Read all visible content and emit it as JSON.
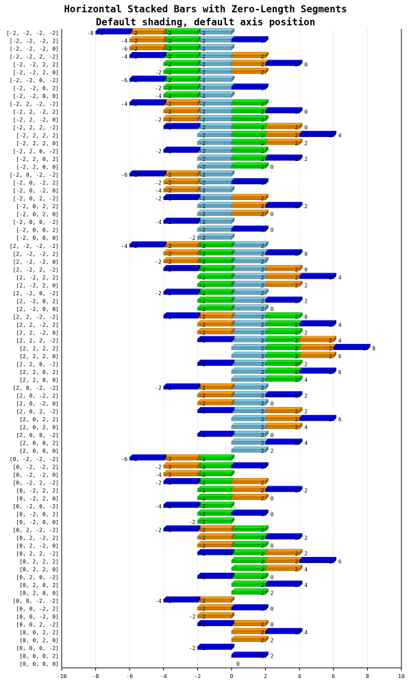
{
  "chart_data": {
    "type": "bar",
    "orientation": "horizontal",
    "stacked": true,
    "title": "Horizontal Stacked Bars with Zero-Length Segments",
    "subtitle": "Default shading, default axis position",
    "xlim": [
      -10,
      10
    ],
    "x_ticks": [
      "-10",
      "-8",
      "-6",
      "-4",
      "-2",
      "0",
      "2",
      "4",
      "6",
      "8",
      "10"
    ],
    "grid": "vertical dotted",
    "series": [
      {
        "name": "",
        "color": "#7ec8e6"
      },
      {
        "name": "",
        "color": "#00ee00"
      },
      {
        "name": "",
        "color": "#ff9900"
      },
      {
        "name": "",
        "color": "#0000ee"
      }
    ],
    "categories": [
      "[-2, -2, -2, -2]",
      "[-2, -2, -2, 2]",
      "[-2, -2, -2, 0]",
      "[-2, -2, 2, -2]",
      "[-2, -2, 2, 2]",
      "[-2, -2, 2, 0]",
      "[-2, -2, 0, -2]",
      "[-2, -2, 0, 2]",
      "[-2, -2, 0, 0]",
      "[-2, 2, -2, -2]",
      "[-2, 2, -2, 2]",
      "[-2, 2, -2, 0]",
      "[-2, 2, 2, -2]",
      "[-2, 2, 2, 2]",
      "[-2, 2, 2, 0]",
      "[-2, 2, 0, -2]",
      "[-2, 2, 0, 2]",
      "[-2, 2, 0, 0]",
      "[-2, 0, -2, -2]",
      "[-2, 0, -2, 2]",
      "[-2, 0, -2, 0]",
      "[-2, 0, 2, -2]",
      "[-2, 0, 2, 2]",
      "[-2, 0, 2, 0]",
      "[-2, 0, 0, -2]",
      "[-2, 0, 0, 2]",
      "[-2, 0, 0, 0]",
      "[2, -2, -2, -2]",
      "[2, -2, -2, 2]",
      "[2, -2, -2, 0]",
      "[2, -2, 2, -2]",
      "[2, -2, 2, 2]",
      "[2, -2, 2, 0]",
      "[2, -2, 0, -2]",
      "[2, -2, 0, 2]",
      "[2, -2, 0, 0]",
      "[2, 2, -2, -2]",
      "[2, 2, -2, 2]",
      "[2, 2, -2, 0]",
      "[2, 2, 2, -2]",
      "[2, 2, 2, 2]",
      "[2, 2, 2, 0]",
      "[2, 2, 0, -2]",
      "[2, 2, 0, 2]",
      "[2, 2, 0, 0]",
      "[2, 0, -2, -2]",
      "[2, 0, -2, 2]",
      "[2, 0, -2, 0]",
      "[2, 0, 2, -2]",
      "[2, 0, 2, 2]",
      "[2, 0, 2, 0]",
      "[2, 0, 0, -2]",
      "[2, 0, 0, 2]",
      "[2, 0, 0, 0]",
      "[0, -2, -2, -2]",
      "[0, -2, -2, 2]",
      "[0, -2, -2, 0]",
      "[0, -2, 2, -2]",
      "[0, -2, 2, 2]",
      "[0, -2, 2, 0]",
      "[0, -2, 0, -2]",
      "[0, -2, 0, 2]",
      "[0, -2, 0, 0]",
      "[0, 2, -2, -2]",
      "[0, 2, -2, 2]",
      "[0, 2, -2, 0]",
      "[0, 2, 2, -2]",
      "[0, 2, 2, 2]",
      "[0, 2, 2, 0]",
      "[0, 2, 0, -2]",
      "[0, 2, 0, 2]",
      "[0, 2, 0, 0]",
      "[0, 0, -2, -2]",
      "[0, 0, -2, 2]",
      "[0, 0, -2, 0]",
      "[0, 0, 2, -2]",
      "[0, 0, 2, 2]",
      "[0, 0, 2, 0]",
      "[0, 0, 0, -2]",
      "[0, 0, 0, 2]",
      "[0, 0, 0, 0]"
    ],
    "data_labels": "segment value inside each nonzero segment; stack total at the end of each bar"
  }
}
